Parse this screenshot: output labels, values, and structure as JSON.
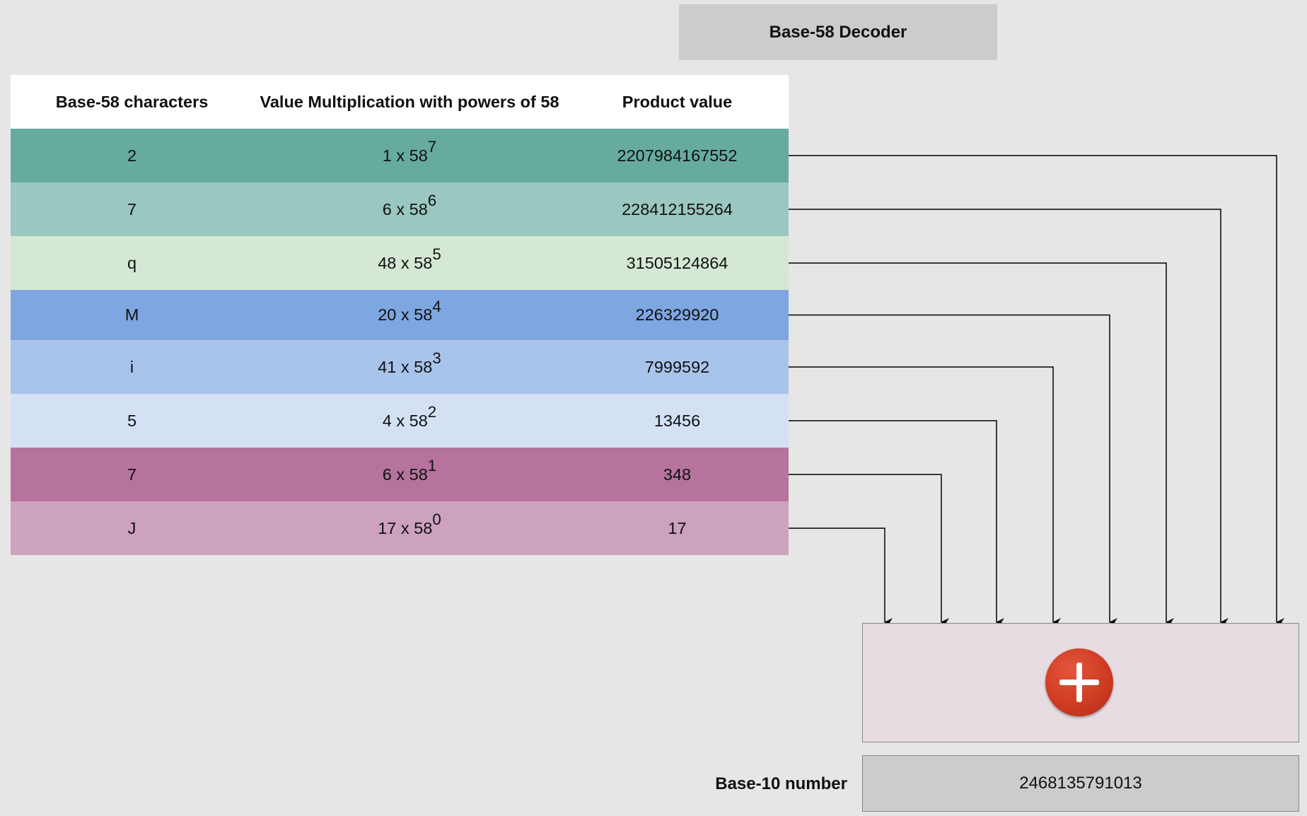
{
  "title": "Base-58 Decoder",
  "table": {
    "headers": [
      "Base-58 characters",
      "Value Multiplication with powers of 58",
      "Product value"
    ],
    "rows": [
      {
        "char": "2",
        "mult": "1 x 58",
        "exp": "7",
        "product": "2207984167552",
        "color": "#67ab9f"
      },
      {
        "char": "7",
        "mult": "6 x 58",
        "exp": "6",
        "product": "228412155264",
        "color": "#9ac7bf"
      },
      {
        "char": "q",
        "mult": "48 x 58",
        "exp": "5",
        "product": "31505124864",
        "color": "#d5e8d4"
      },
      {
        "char": "M",
        "mult": "20 x 58",
        "exp": "4",
        "product": "226329920",
        "color": "#7ea6e0"
      },
      {
        "char": "i",
        "mult": "41 x 58",
        "exp": "3",
        "product": "7999592",
        "color": "#a9c4eb"
      },
      {
        "char": "5",
        "mult": "4 x 58",
        "exp": "2",
        "product": "13456",
        "color": "#d4e1f5"
      },
      {
        "char": "7",
        "mult": "6 x 58",
        "exp": "1",
        "product": "348",
        "color": "#b5739d"
      },
      {
        "char": "J",
        "mult": "17 x 58",
        "exp": "0",
        "product": "17",
        "color": "#cda2be"
      }
    ]
  },
  "sum_icon": "plus-icon",
  "result": {
    "label": "Base-10 number",
    "value": "2468135791013"
  }
}
